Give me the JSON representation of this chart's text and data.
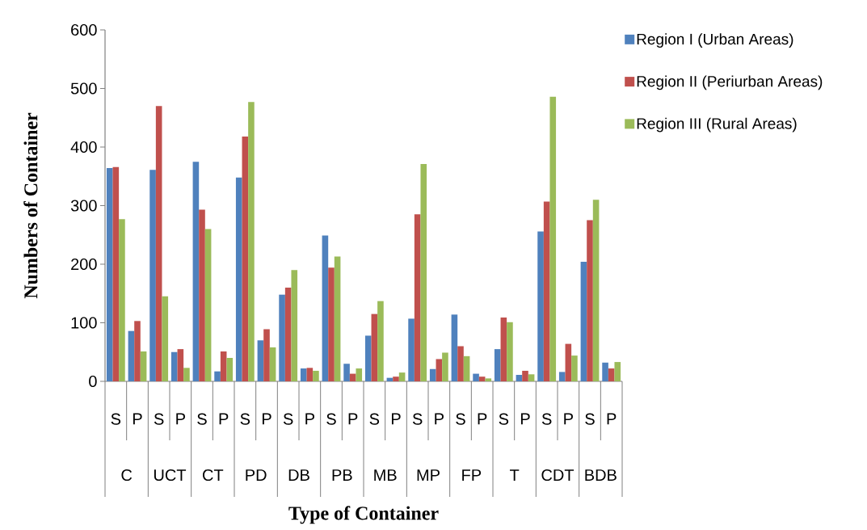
{
  "chart_data": {
    "type": "bar",
    "xlabel": "Type of Container",
    "ylabel": "Numbers of Container",
    "categories": [
      "S",
      "P",
      "S",
      "P",
      "S",
      "P",
      "S",
      "P",
      "S",
      "P",
      "S",
      "P",
      "S",
      "P",
      "S",
      "P",
      "S",
      "P",
      "S",
      "P",
      "S",
      "P",
      "S",
      "P"
    ],
    "annotations": [
      "C",
      "UCT",
      "CT",
      "PD",
      "DB",
      "PB",
      "MB",
      "MP",
      "FP",
      "T",
      "CDT",
      "BDB"
    ],
    "series": [
      {
        "name": "Region I (Urban Areas)",
        "color": "#4f81bd",
        "values": [
          364,
          86,
          361,
          50,
          375,
          17,
          348,
          70,
          148,
          22,
          249,
          30,
          78,
          6,
          107,
          21,
          114,
          13,
          55,
          11,
          256,
          16,
          204,
          32
        ]
      },
      {
        "name": "Region II (Periurban Areas)",
        "color": "#c0504d",
        "values": [
          366,
          103,
          470,
          55,
          293,
          51,
          418,
          89,
          160,
          23,
          194,
          13,
          115,
          8,
          285,
          38,
          60,
          8,
          109,
          18,
          307,
          64,
          275,
          22
        ]
      },
      {
        "name": "Region III (Rural Areas)",
        "color": "#9bbb59",
        "values": [
          277,
          51,
          145,
          23,
          260,
          40,
          477,
          58,
          190,
          18,
          213,
          22,
          137,
          15,
          371,
          49,
          43,
          5,
          101,
          12,
          486,
          44,
          310,
          33
        ]
      }
    ],
    "ylim": [
      0,
      600
    ],
    "yticks": [
      0,
      100,
      200,
      300,
      400,
      500,
      600
    ],
    "grid": false,
    "legend": "right"
  }
}
